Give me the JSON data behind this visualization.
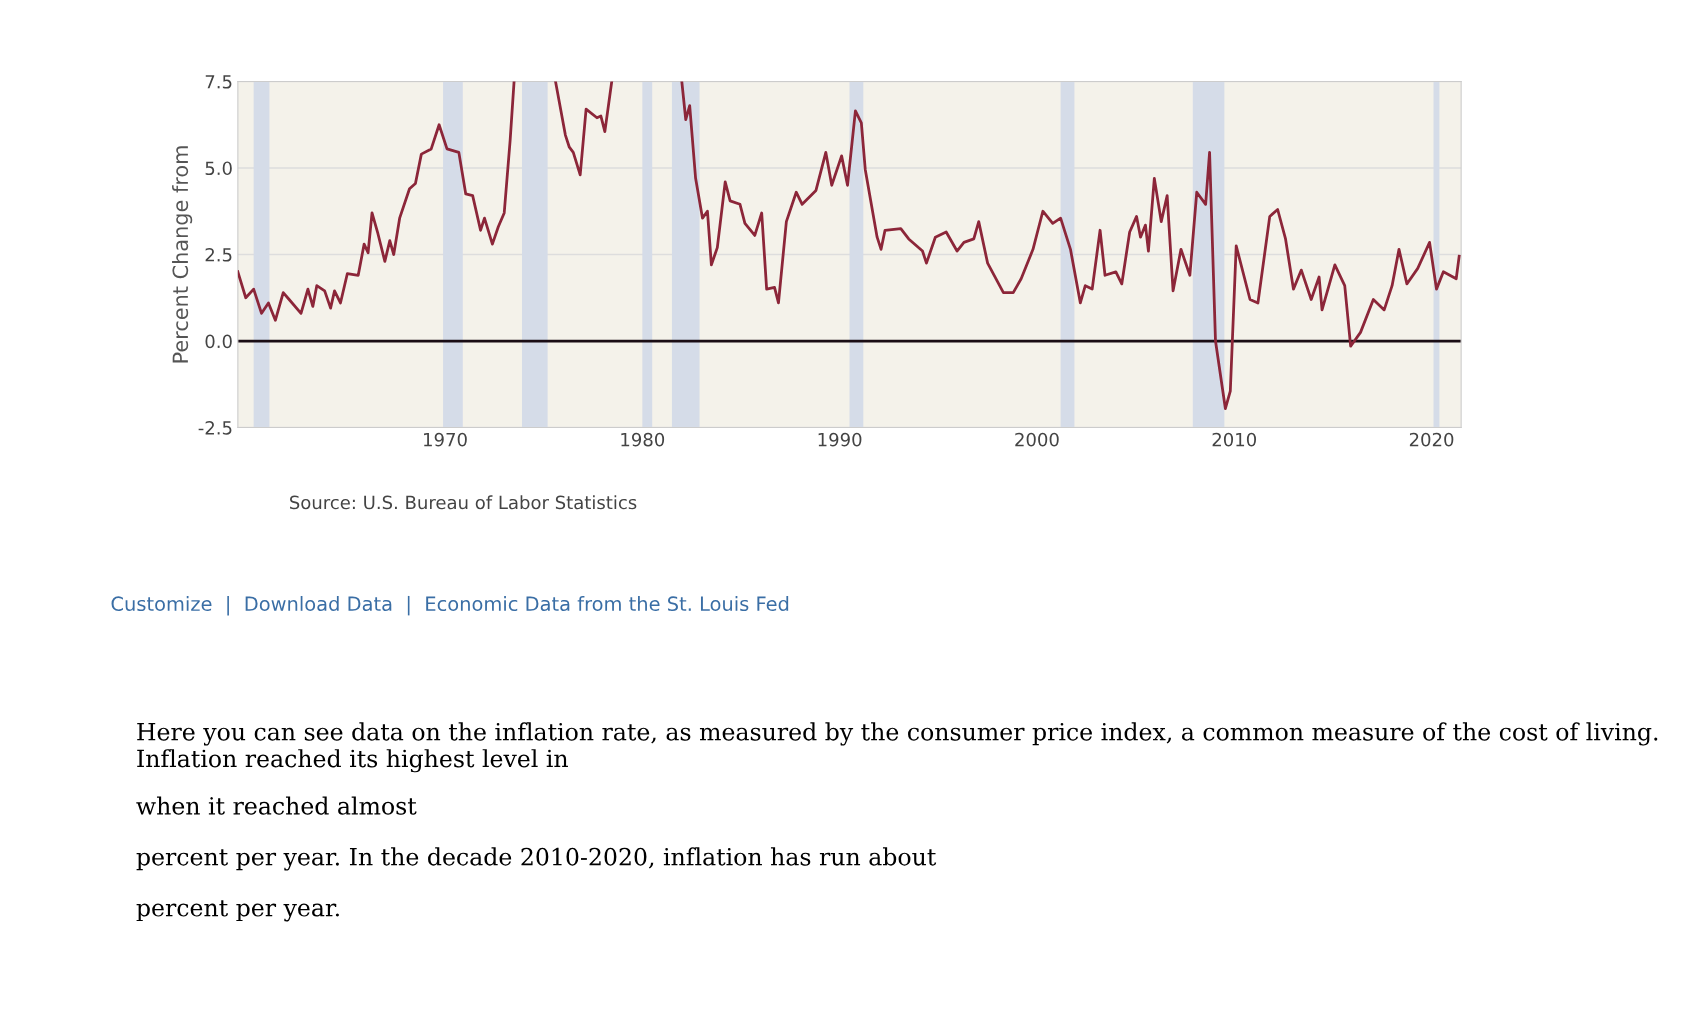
{
  "chart_data": {
    "type": "line",
    "ylabel": "Percent Change from",
    "x": [
      1959.5,
      1959.9,
      1960.3,
      1960.7,
      1961.05,
      1961.4,
      1961.8,
      1962.1,
      1962.7,
      1963.05,
      1963.3,
      1963.5,
      1963.9,
      1964.2,
      1964.4,
      1964.7,
      1965.05,
      1965.6,
      1965.9,
      1966.1,
      1966.3,
      1966.6,
      1966.95,
      1967.2,
      1967.4,
      1967.7,
      1968.2,
      1968.5,
      1968.8,
      1969.3,
      1969.7,
      1970.1,
      1970.7,
      1971.05,
      1971.4,
      1971.8,
      1972.0,
      1972.4,
      1972.7,
      1973.0,
      1973.3,
      1973.5,
      1974.5,
      1975.6,
      1976.1,
      1976.3,
      1976.5,
      1976.85,
      1977.15,
      1977.7,
      1977.9,
      1978.1,
      1978.45,
      1980.0,
      1982.0,
      1982.2,
      1982.4,
      1982.7,
      1983.05,
      1983.3,
      1983.5,
      1983.8,
      1984.2,
      1984.45,
      1984.95,
      1985.2,
      1985.7,
      1986.05,
      1986.3,
      1986.7,
      1986.9,
      1987.3,
      1987.8,
      1988.1,
      1988.8,
      1989.3,
      1989.6,
      1990.1,
      1990.4,
      1990.8,
      1991.1,
      1991.3,
      1991.9,
      1992.1,
      1992.3,
      1993.1,
      1993.5,
      1994.2,
      1994.4,
      1994.85,
      1995.4,
      1995.95,
      1996.3,
      1996.8,
      1997.05,
      1997.5,
      1998.3,
      1998.8,
      1999.2,
      1999.8,
      2000.3,
      2000.8,
      2001.2,
      2001.7,
      2002.2,
      2002.45,
      2002.8,
      2003.2,
      2003.45,
      2004.0,
      2004.3,
      2004.7,
      2005.05,
      2005.25,
      2005.5,
      2005.65,
      2005.95,
      2006.3,
      2006.6,
      2006.9,
      2007.3,
      2007.75,
      2008.1,
      2008.55,
      2008.75,
      2009.05,
      2009.55,
      2009.8,
      2010.1,
      2010.8,
      2011.2,
      2011.8,
      2012.2,
      2012.6,
      2013.0,
      2013.4,
      2013.9,
      2014.3,
      2014.45,
      2015.1,
      2015.6,
      2015.9,
      2016.4,
      2017.05,
      2017.6,
      2018.0,
      2018.35,
      2018.75,
      2019.3,
      2019.9,
      2020.25,
      2020.6,
      2021.25,
      2021.4
    ],
    "series": [
      {
        "color": "#8c2639",
        "values": [
          2.0,
          1.25,
          1.5,
          0.8,
          1.1,
          0.6,
          1.4,
          1.2,
          0.8,
          1.5,
          1.0,
          1.6,
          1.45,
          0.95,
          1.45,
          1.1,
          1.95,
          1.9,
          2.8,
          2.55,
          3.7,
          3.1,
          2.3,
          2.9,
          2.5,
          3.55,
          4.4,
          4.55,
          5.4,
          5.55,
          6.25,
          5.55,
          5.45,
          4.25,
          4.2,
          3.2,
          3.55,
          2.8,
          3.3,
          3.7,
          5.8,
          7.5,
          null,
          7.5,
          5.95,
          5.6,
          5.45,
          4.8,
          6.7,
          6.45,
          6.5,
          6.05,
          7.5,
          null,
          7.5,
          6.4,
          6.8,
          4.7,
          3.55,
          3.75,
          2.2,
          2.7,
          4.6,
          4.05,
          3.95,
          3.4,
          3.05,
          3.7,
          1.5,
          1.55,
          1.1,
          3.45,
          4.3,
          3.95,
          4.35,
          5.45,
          4.5,
          5.35,
          4.5,
          6.65,
          6.3,
          4.95,
          3.0,
          2.65,
          3.2,
          3.25,
          2.95,
          2.6,
          2.25,
          3.0,
          3.15,
          2.6,
          2.85,
          2.95,
          3.45,
          2.25,
          1.4,
          1.4,
          1.8,
          2.65,
          3.75,
          3.4,
          3.55,
          2.65,
          1.1,
          1.6,
          1.5,
          3.2,
          1.9,
          2.0,
          1.65,
          3.15,
          3.6,
          3.0,
          3.35,
          2.6,
          4.7,
          3.45,
          4.2,
          1.45,
          2.65,
          1.9,
          4.3,
          3.95,
          5.45,
          0.0,
          -1.95,
          -1.45,
          2.75,
          1.2,
          1.1,
          3.6,
          3.8,
          2.95,
          1.5,
          2.05,
          1.2,
          1.85,
          0.9,
          2.2,
          1.6,
          -0.15,
          0.25,
          1.2,
          0.9,
          1.6,
          2.65,
          1.65,
          2.1,
          2.85,
          1.5,
          2.0,
          1.8,
          2.45
        ]
      }
    ],
    "xlim": [
      1959.5,
      2021.5
    ],
    "xticks": [
      1970,
      1980,
      1990,
      2000,
      2010,
      2020
    ],
    "ylim": [
      -2.5,
      7.5
    ],
    "yticks": [
      {
        "value": -2.5,
        "label": "-2.5"
      },
      {
        "value": 0,
        "label": "0.0"
      },
      {
        "value": 2.5,
        "label": "2.5"
      },
      {
        "value": 5,
        "label": "5.0"
      },
      {
        "value": 7.5,
        "label": "7.5"
      }
    ],
    "grid": "y",
    "line_style": "solid",
    "marker": "none",
    "ref_lines": [
      {
        "axis": "y",
        "value": 0,
        "color": "#1a0d14"
      }
    ],
    "bands": [
      {
        "axis": "x",
        "from": 1960.3,
        "to": 1961.1,
        "color": "#d5dce8"
      },
      {
        "axis": "x",
        "from": 1969.9,
        "to": 1970.9,
        "color": "#d5dce8"
      },
      {
        "axis": "x",
        "from": 1973.9,
        "to": 1975.2,
        "color": "#d5dce8"
      },
      {
        "axis": "x",
        "from": 1980.0,
        "to": 1980.5,
        "color": "#d5dce8"
      },
      {
        "axis": "x",
        "from": 1981.5,
        "to": 1982.9,
        "color": "#d5dce8"
      },
      {
        "axis": "x",
        "from": 1990.5,
        "to": 1991.2,
        "color": "#d5dce8"
      },
      {
        "axis": "x",
        "from": 2001.2,
        "to": 2001.9,
        "color": "#d5dce8"
      },
      {
        "axis": "x",
        "from": 2007.9,
        "to": 2009.5,
        "color": "#d5dce8"
      },
      {
        "axis": "x",
        "from": 2020.1,
        "to": 2020.4,
        "color": "#d5dce8"
      }
    ],
    "annotations": [
      "Source: U.S. Bureau of Labor Statistics",
      "Customize  |  Download Data  |  Economic Data from the St. Louis Fed",
      "Here you can see data on the inflation rate, as measured by the consumer price index, a common measure of the cost of living. Inflation reached its highest level in",
      "when it reached almost",
      "percent per year. In the decade 2010-2020, inflation has run about",
      "percent per year."
    ]
  }
}
